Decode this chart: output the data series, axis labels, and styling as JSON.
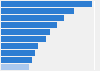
{
  "values": [
    98,
    78,
    68,
    60,
    52,
    48,
    40,
    36,
    33,
    30
  ],
  "bar_color": "#2d7dd2",
  "last_bar_color": "#aac8ee",
  "background_color": "#f0f0f0",
  "grid_color": "#ffffff",
  "xlim": [
    0,
    105
  ],
  "bar_height": 0.82
}
